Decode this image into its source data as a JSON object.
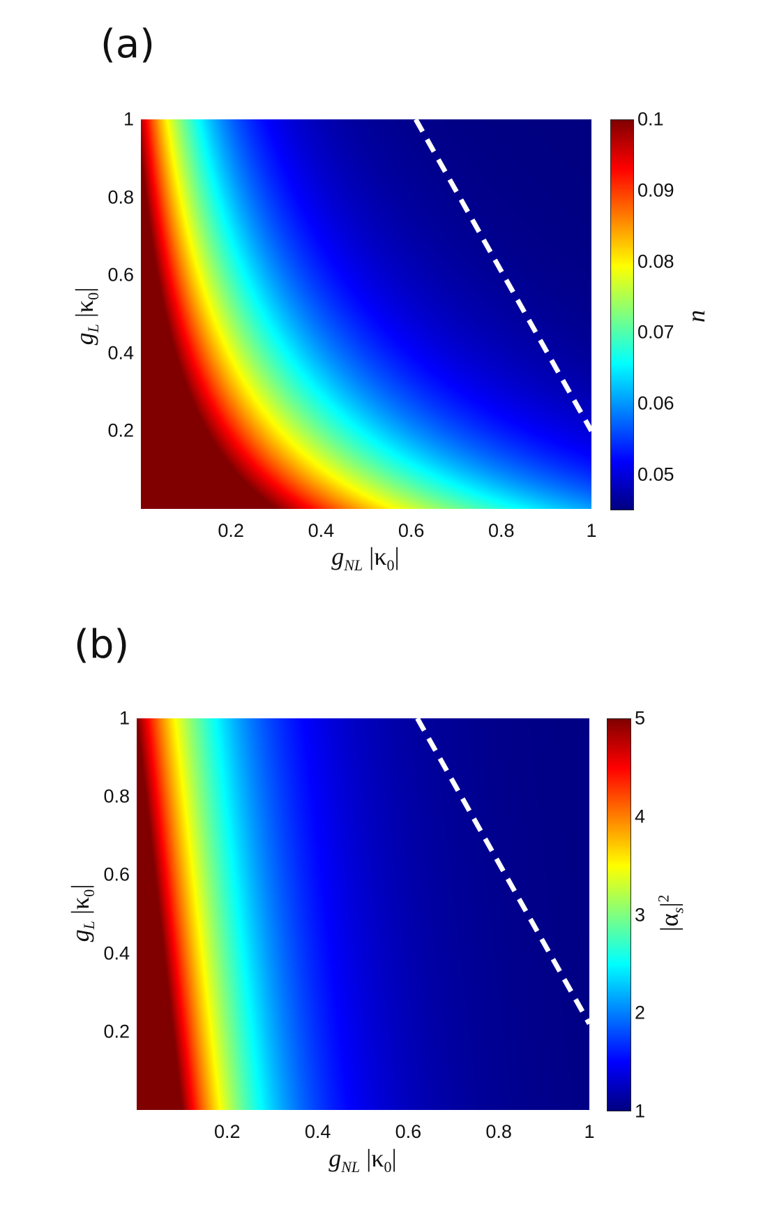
{
  "chart_data": [
    {
      "type": "heatmap",
      "panel_label": "(a)",
      "xlabel": {
        "base": "g",
        "sub": "NL",
        "unit": "|κ",
        "unit_sub": "0",
        "close": "|"
      },
      "ylabel": {
        "base": "g",
        "sub": "L",
        "unit": "|κ",
        "unit_sub": "0",
        "close": "|"
      },
      "xlim": [
        0,
        1
      ],
      "ylim": [
        0,
        1
      ],
      "xticks": [
        "0.2",
        "0.4",
        "0.6",
        "0.8",
        "1"
      ],
      "yticks": [
        "0.2",
        "0.4",
        "0.6",
        "0.8",
        "1"
      ],
      "colorbar": {
        "label": "n",
        "range": [
          0.045,
          0.1
        ],
        "ticks": [
          "0.05",
          "0.06",
          "0.07",
          "0.08",
          "0.09",
          "0.1"
        ],
        "colormap": "jet"
      },
      "dashed_line": {
        "color": "#ffffff",
        "points": [
          [
            0.61,
            1.0
          ],
          [
            1.0,
            0.2
          ]
        ]
      },
      "description_values": {
        "max_region": "lower-left (n ≥ 0.1)",
        "min_region": "upper-right (n ≈ 0.045)"
      }
    },
    {
      "type": "heatmap",
      "panel_label": "(b)",
      "xlabel": {
        "base": "g",
        "sub": "NL",
        "unit": "|κ",
        "unit_sub": "0",
        "close": "|"
      },
      "ylabel": {
        "base": "g",
        "sub": "L",
        "unit": "|κ",
        "unit_sub": "0",
        "close": "|"
      },
      "xlim": [
        0,
        1
      ],
      "ylim": [
        0,
        1
      ],
      "xticks": [
        "0.2",
        "0.4",
        "0.6",
        "0.8",
        "1"
      ],
      "yticks": [
        "0.2",
        "0.4",
        "0.6",
        "0.8",
        "1"
      ],
      "colorbar": {
        "label": "|α_s|^2",
        "label_parts": {
          "open": "|α",
          "sub": "s",
          "close": "|",
          "sup": "2"
        },
        "range": [
          1,
          5
        ],
        "ticks": [
          "1",
          "2",
          "3",
          "4",
          "5"
        ],
        "colormap": "jet"
      },
      "dashed_line": {
        "color": "#ffffff",
        "points": [
          [
            0.62,
            1.0
          ],
          [
            1.0,
            0.22
          ]
        ]
      },
      "description_values": {
        "max_region": "left edge (|α_s|^2 ≥ 5)",
        "min_region": "right (|α_s|^2 ≈ 1)"
      }
    }
  ]
}
